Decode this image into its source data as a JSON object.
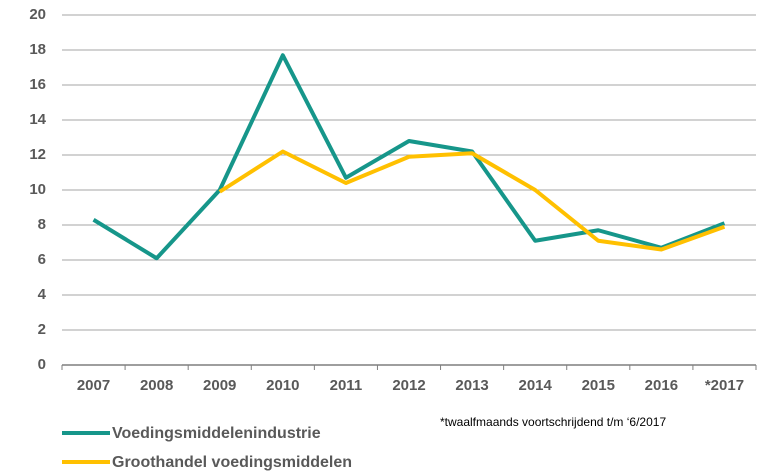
{
  "chart_data": {
    "type": "line",
    "categories": [
      "2007",
      "2008",
      "2009",
      "2010",
      "2011",
      "2012",
      "2013",
      "2014",
      "2015",
      "2016",
      "*2017"
    ],
    "series": [
      {
        "name": "Voedingsmiddelenindustrie",
        "color": "#16968a",
        "values": [
          8.3,
          6.1,
          10.0,
          17.7,
          10.7,
          12.8,
          12.2,
          7.1,
          7.7,
          6.7,
          8.1
        ]
      },
      {
        "name": "Groothandel voedingsmiddelen",
        "color": "#ffc000",
        "values": [
          null,
          null,
          9.9,
          12.2,
          10.4,
          11.9,
          12.1,
          10.0,
          7.1,
          6.6,
          7.9
        ]
      }
    ],
    "ylim": [
      0,
      20
    ],
    "yticks": [
      0,
      2,
      4,
      6,
      8,
      10,
      12,
      14,
      16,
      18,
      20
    ],
    "grid": true,
    "annotation": "*twaalfmaands voortschrijdend t/m ‘6/2017"
  }
}
